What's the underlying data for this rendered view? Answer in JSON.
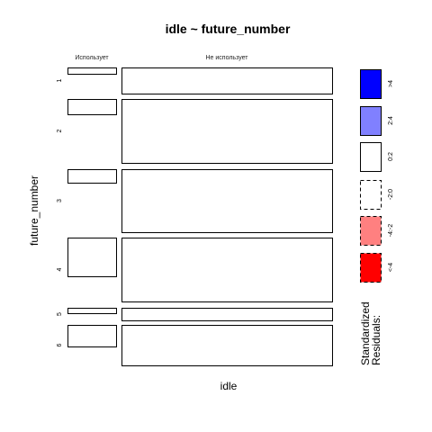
{
  "chart_data": {
    "type": "mosaic",
    "title": "idle ~ future_number",
    "xlabel": "idle",
    "ylabel": "future_number",
    "columns": [
      "Использует",
      "Не использует"
    ],
    "rows": [
      "1",
      "2",
      "3",
      "4",
      "5",
      "6"
    ],
    "row_proportions": [
      0.072,
      0.194,
      0.225,
      0.238,
      0.073,
      0.125
    ],
    "within_row_split": [
      {
        "row": "1",
        "fractions": [
          0.0,
          0.239,
          0.761
        ]
      },
      {
        "row": "2",
        "fractions": [
          0.0,
          0.238,
          0.762
        ]
      },
      {
        "row": "3",
        "fractions": [
          0.0,
          0.219,
          0.781
        ]
      },
      {
        "row": "4",
        "fractions": [
          0.0,
          0.611,
          0.389
        ]
      },
      {
        "row": "5",
        "fractions": [
          0.0,
          0.405,
          0.595
        ]
      },
      {
        "row": "6",
        "fractions": [
          0.0,
          0.543,
          0.457
        ]
      }
    ],
    "cells": [
      {
        "row": "1",
        "column": "Использует",
        "residual_class": "<-2:0"
      },
      {
        "row": "1",
        "column": "Не использует",
        "residual_class": "0:2"
      },
      {
        "row": "2",
        "column": "Использует",
        "residual_class": "<-2:0"
      },
      {
        "row": "2",
        "column": "Не использует",
        "residual_class": "0:2"
      },
      {
        "row": "3",
        "column": "Использует",
        "residual_class": "<-2:0"
      },
      {
        "row": "3",
        "column": "Не использует",
        "residual_class": "0:2"
      },
      {
        "row": "4",
        "column": "Использует",
        "residual_class": "0:2"
      },
      {
        "row": "4",
        "column": "Не использует",
        "residual_class": "<-2:0"
      },
      {
        "row": "5",
        "column": "Использует",
        "residual_class": "<-2:0"
      },
      {
        "row": "5",
        "column": "Не использует",
        "residual_class": "<-2:0"
      },
      {
        "row": "6",
        "column": "Использует",
        "residual_class": "0:2"
      },
      {
        "row": "6",
        "column": "Не использует",
        "residual_class": "<-2:0"
      }
    ],
    "legend": {
      "title_lines": [
        "Standardized",
        "Residuals:"
      ],
      "placement": "right",
      "entries": [
        {
          "label": ">4",
          "fill": "#0000ff",
          "dashed": false
        },
        {
          "label": "2:4",
          "fill": "#8080ff",
          "dashed": false
        },
        {
          "label": "0:2",
          "fill": "#ffffff",
          "dashed": false
        },
        {
          "label": "-2:0",
          "fill": "#ffffff",
          "dashed": true
        },
        {
          "label": "-4:-2",
          "fill": "#ff8080",
          "dashed": true
        },
        {
          "label": "<-4",
          "fill": "#ff0000",
          "dashed": true
        }
      ]
    }
  }
}
